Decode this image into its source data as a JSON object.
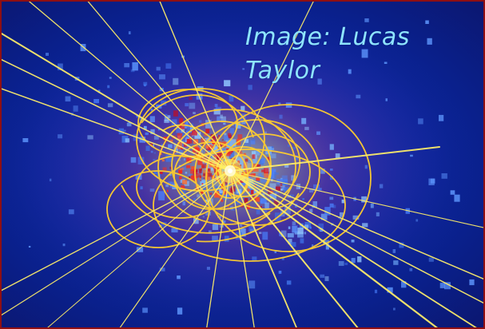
{
  "image": {
    "credit_text": "Image:  Lucas Taylor"
  },
  "colors": {
    "border": "#8f0f13",
    "background": "#0a2395",
    "hits_blue": "#5f98ff",
    "hits_red": "#ff2a16",
    "tracks_yellow": "#ffe23a",
    "credit_text": "#8ee4ff"
  }
}
